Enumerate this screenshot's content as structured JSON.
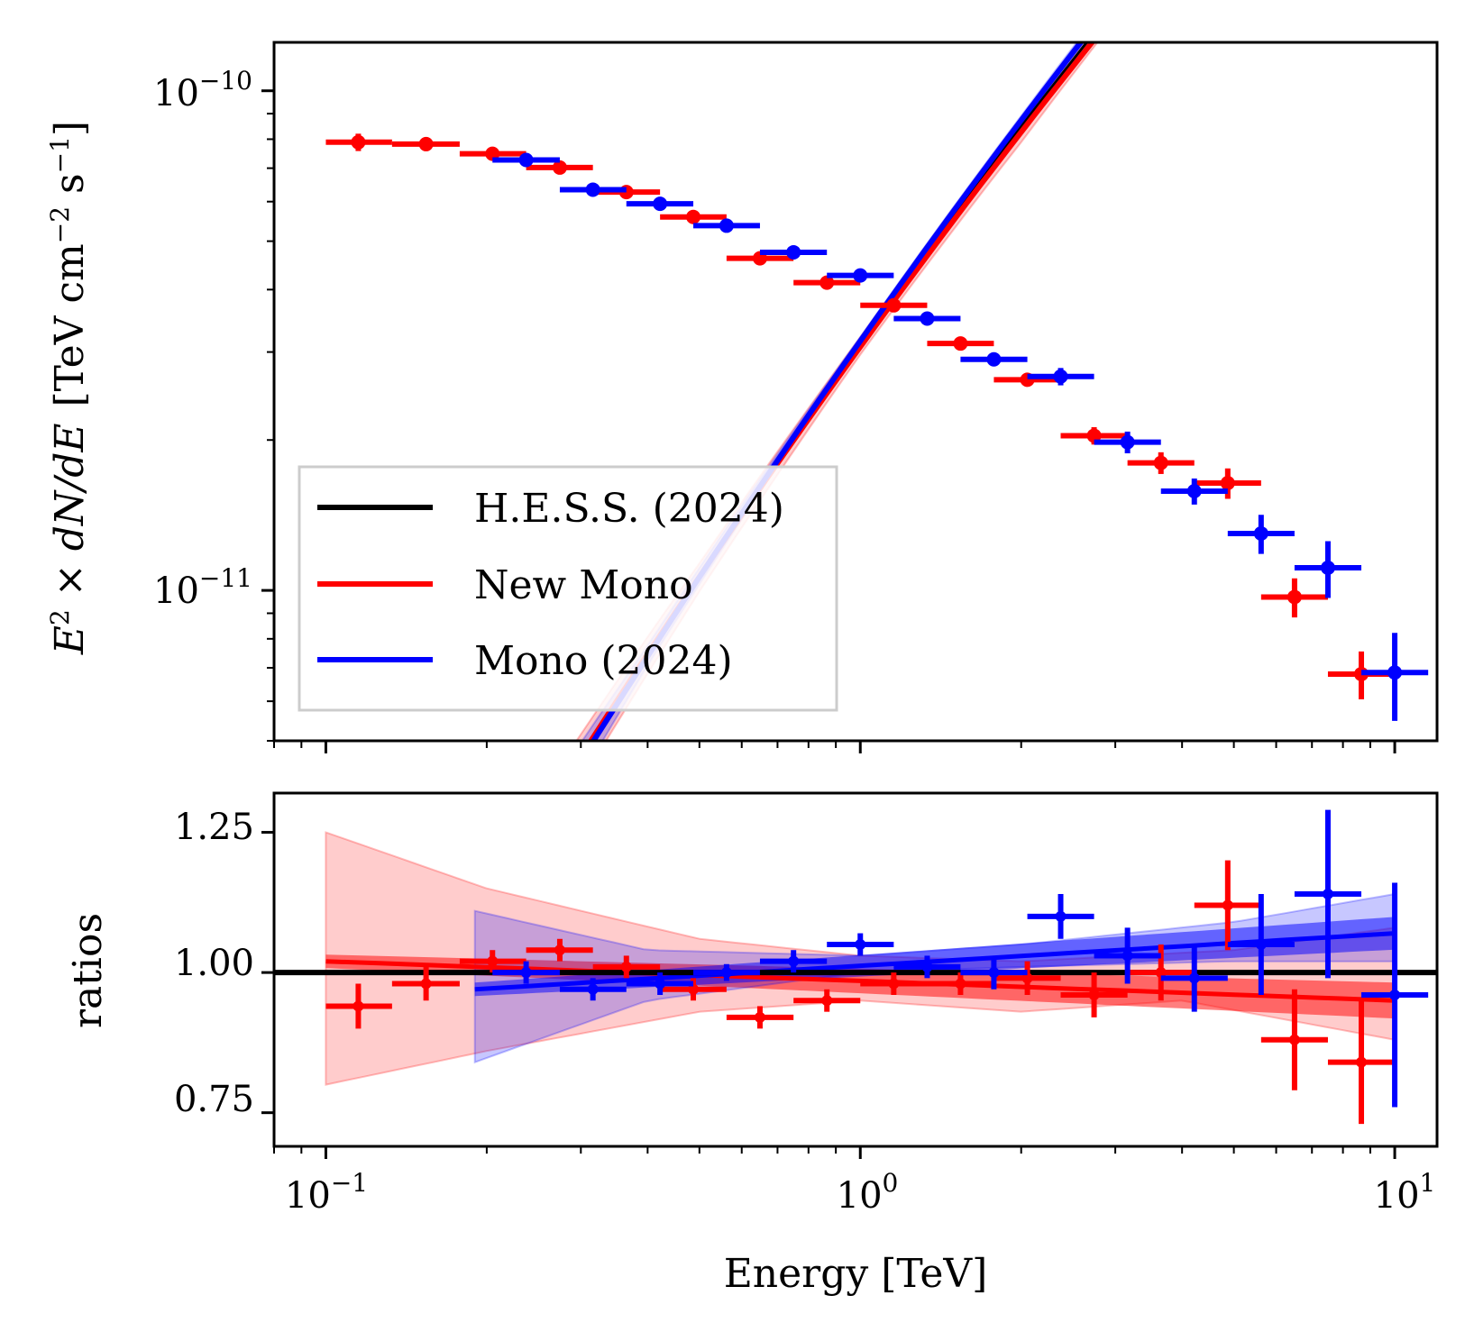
{
  "chart_data": [
    {
      "type": "line",
      "panel": "spectrum",
      "xscale": "log",
      "yscale": "log",
      "xlim": [
        0.08,
        12
      ],
      "ylim": [
        5e-12,
        1.25e-10
      ],
      "ylabel_parts": {
        "E": "E",
        "sq": "2",
        "times": " × ",
        "dNdE": "dN/dE",
        "unit_open": "[TeV cm",
        "unit_exp1": "−2",
        "unit_s": " s",
        "unit_exp2": "−1",
        "unit_close": "]"
      },
      "y_ticks": [
        {
          "value": 1e-10,
          "base": "10",
          "exp": "−10"
        },
        {
          "value": 1e-11,
          "base": "10",
          "exp": "−11"
        }
      ],
      "legend": {
        "placement": "lower-left",
        "entries": [
          {
            "label": "H.E.S.S. (2024)",
            "color": "#000000"
          },
          {
            "label": "New Mono",
            "color": "#ff0000"
          },
          {
            "label": "Mono (2024)",
            "color": "#0000ff"
          }
        ]
      },
      "series": [
        {
          "name": "H.E.S.S. (2024)",
          "color": "#000000",
          "model": "log-parabola",
          "norm": 3.12e-11,
          "e0": 1.0,
          "alpha": 0.506,
          "beta": 0.0736,
          "range": [
            0.1,
            10
          ]
        },
        {
          "name": "New Mono",
          "color": "#ff0000",
          "model": "log-parabola",
          "norm": 3.12e-11,
          "e0": 1.0,
          "alpha": 0.506,
          "beta": 0.0736,
          "ratio_start": 1.02,
          "ratio_end": 0.95,
          "band_ratio_low": [
            [
              0.1,
              0.8
            ],
            [
              0.2,
              0.86
            ],
            [
              0.5,
              0.93
            ],
            [
              1,
              0.95
            ],
            [
              2,
              0.93
            ],
            [
              4,
              0.95
            ],
            [
              10,
              0.88
            ]
          ],
          "band_ratio_high": [
            [
              0.1,
              1.25
            ],
            [
              0.2,
              1.15
            ],
            [
              0.5,
              1.06
            ],
            [
              1,
              1.03
            ],
            [
              2,
              1.02
            ],
            [
              5,
              1.04
            ],
            [
              10,
              1.08
            ]
          ],
          "range": [
            0.1,
            10
          ],
          "points": [
            {
              "e": 0.115,
              "elo": 0.1,
              "ehi": 0.133,
              "flux": 7.89e-11,
              "err": 0.04
            },
            {
              "e": 0.154,
              "elo": 0.133,
              "ehi": 0.178,
              "flux": 7.82e-11,
              "err": 0.03
            },
            {
              "e": 0.205,
              "elo": 0.178,
              "ehi": 0.237,
              "flux": 7.48e-11,
              "err": 0.02
            },
            {
              "e": 0.274,
              "elo": 0.237,
              "ehi": 0.316,
              "flux": 7.02e-11,
              "err": 0.02
            },
            {
              "e": 0.365,
              "elo": 0.316,
              "ehi": 0.422,
              "flux": 6.27e-11,
              "err": 0.02
            },
            {
              "e": 0.487,
              "elo": 0.422,
              "ehi": 0.562,
              "flux": 5.59e-11,
              "err": 0.02
            },
            {
              "e": 0.649,
              "elo": 0.562,
              "ehi": 0.75,
              "flux": 4.62e-11,
              "err": 0.02
            },
            {
              "e": 0.866,
              "elo": 0.75,
              "ehi": 1.0,
              "flux": 4.13e-11,
              "err": 0.02
            },
            {
              "e": 1.155,
              "elo": 1.0,
              "ehi": 1.334,
              "flux": 3.72e-11,
              "err": 0.02
            },
            {
              "e": 1.54,
              "elo": 1.334,
              "ehi": 1.778,
              "flux": 3.12e-11,
              "err": 0.02
            },
            {
              "e": 2.054,
              "elo": 1.778,
              "ehi": 2.371,
              "flux": 2.64e-11,
              "err": 0.03
            },
            {
              "e": 2.738,
              "elo": 2.371,
              "ehi": 3.162,
              "flux": 2.04e-11,
              "err": 0.04
            },
            {
              "e": 3.652,
              "elo": 3.162,
              "ehi": 4.217,
              "flux": 1.8e-11,
              "err": 0.05
            },
            {
              "e": 4.87,
              "elo": 4.217,
              "ehi": 5.623,
              "flux": 1.64e-11,
              "err": 0.07
            },
            {
              "e": 6.494,
              "elo": 5.623,
              "ehi": 7.499,
              "flux": 9.7e-12,
              "err": 0.09
            },
            {
              "e": 8.66,
              "elo": 7.499,
              "ehi": 10.0,
              "flux": 6.8e-12,
              "err": 0.11
            }
          ]
        },
        {
          "name": "Mono (2024)",
          "color": "#0000ff",
          "model": "log-parabola",
          "norm": 3.12e-11,
          "e0": 1.0,
          "alpha": 0.506,
          "beta": 0.0736,
          "ratio_start": 0.97,
          "ratio_end": 1.07,
          "band_ratio_low": [
            [
              0.19,
              0.84
            ],
            [
              0.4,
              0.95
            ],
            [
              1,
              1.0
            ],
            [
              2,
              1.01
            ],
            [
              5,
              1.02
            ],
            [
              10,
              1.02
            ]
          ],
          "band_ratio_high": [
            [
              0.19,
              1.11
            ],
            [
              0.4,
              1.04
            ],
            [
              1,
              1.03
            ],
            [
              2,
              1.05
            ],
            [
              5,
              1.09
            ],
            [
              10,
              1.14
            ]
          ],
          "range": [
            0.19,
            10
          ],
          "points": [
            {
              "e": 0.237,
              "elo": 0.205,
              "ehi": 0.274,
              "flux": 7.27e-11,
              "err": 0.02
            },
            {
              "e": 0.316,
              "elo": 0.274,
              "ehi": 0.365,
              "flux": 6.34e-11,
              "err": 0.02
            },
            {
              "e": 0.422,
              "elo": 0.365,
              "ehi": 0.487,
              "flux": 5.94e-11,
              "err": 0.02
            },
            {
              "e": 0.562,
              "elo": 0.487,
              "ehi": 0.649,
              "flux": 5.37e-11,
              "err": 0.015
            },
            {
              "e": 0.75,
              "elo": 0.649,
              "ehi": 0.866,
              "flux": 4.75e-11,
              "err": 0.02
            },
            {
              "e": 1.0,
              "elo": 0.866,
              "ehi": 1.155,
              "flux": 4.27e-11,
              "err": 0.02
            },
            {
              "e": 1.334,
              "elo": 1.155,
              "ehi": 1.54,
              "flux": 3.5e-11,
              "err": 0.02
            },
            {
              "e": 1.778,
              "elo": 1.54,
              "ehi": 2.054,
              "flux": 2.9e-11,
              "err": 0.03
            },
            {
              "e": 2.371,
              "elo": 2.054,
              "ehi": 2.738,
              "flux": 2.68e-11,
              "err": 0.04
            },
            {
              "e": 3.162,
              "elo": 2.738,
              "ehi": 3.652,
              "flux": 1.98e-11,
              "err": 0.05
            },
            {
              "e": 4.217,
              "elo": 3.652,
              "ehi": 4.87,
              "flux": 1.58e-11,
              "err": 0.06
            },
            {
              "e": 5.623,
              "elo": 4.87,
              "ehi": 6.494,
              "flux": 1.3e-11,
              "err": 0.09
            },
            {
              "e": 7.499,
              "elo": 6.494,
              "ehi": 8.66,
              "flux": 1.11e-11,
              "err": 0.13
            },
            {
              "e": 10.0,
              "elo": 8.66,
              "ehi": 11.55,
              "flux": 6.85e-12,
              "err": 0.2
            }
          ]
        }
      ]
    },
    {
      "type": "line",
      "panel": "ratios",
      "xscale": "log",
      "xlim": [
        0.08,
        12
      ],
      "ylim": [
        0.69,
        1.32
      ],
      "ylabel": "ratios",
      "xlabel": "Energy [TeV]",
      "y_ticks": [
        "0.75",
        "1.00",
        "1.25"
      ],
      "x_ticks": [
        {
          "value": 0.1,
          "base": "10",
          "exp": "−1"
        },
        {
          "value": 1,
          "base": "10",
          "exp": "0"
        },
        {
          "value": 10,
          "base": "10",
          "exp": "1"
        }
      ],
      "reference_line": {
        "value": 1.0,
        "color": "#000000"
      },
      "series": [
        {
          "name": "New Mono",
          "color": "#ff0000",
          "points": [
            {
              "e": 0.115,
              "elo": 0.1,
              "ehi": 0.133,
              "ratio": 0.94,
              "err": 0.04
            },
            {
              "e": 0.154,
              "elo": 0.133,
              "ehi": 0.178,
              "ratio": 0.98,
              "err": 0.03
            },
            {
              "e": 0.205,
              "elo": 0.178,
              "ehi": 0.237,
              "ratio": 1.02,
              "err": 0.02
            },
            {
              "e": 0.274,
              "elo": 0.237,
              "ehi": 0.316,
              "ratio": 1.04,
              "err": 0.02
            },
            {
              "e": 0.365,
              "elo": 0.316,
              "ehi": 0.422,
              "ratio": 1.01,
              "err": 0.02
            },
            {
              "e": 0.487,
              "elo": 0.422,
              "ehi": 0.562,
              "ratio": 0.97,
              "err": 0.02
            },
            {
              "e": 0.649,
              "elo": 0.562,
              "ehi": 0.75,
              "ratio": 0.92,
              "err": 0.02
            },
            {
              "e": 0.866,
              "elo": 0.75,
              "ehi": 1.0,
              "ratio": 0.95,
              "err": 0.02
            },
            {
              "e": 1.155,
              "elo": 1.0,
              "ehi": 1.334,
              "ratio": 0.98,
              "err": 0.02
            },
            {
              "e": 1.54,
              "elo": 1.334,
              "ehi": 1.778,
              "ratio": 0.98,
              "err": 0.02
            },
            {
              "e": 2.054,
              "elo": 1.778,
              "ehi": 2.371,
              "ratio": 0.99,
              "err": 0.03
            },
            {
              "e": 2.738,
              "elo": 2.371,
              "ehi": 3.162,
              "ratio": 0.96,
              "err": 0.04
            },
            {
              "e": 3.652,
              "elo": 3.162,
              "ehi": 4.217,
              "ratio": 1.0,
              "err": 0.05
            },
            {
              "e": 4.87,
              "elo": 4.217,
              "ehi": 5.623,
              "ratio": 1.12,
              "err": 0.08
            },
            {
              "e": 6.494,
              "elo": 5.623,
              "ehi": 7.499,
              "ratio": 0.88,
              "err": 0.09
            },
            {
              "e": 8.66,
              "elo": 7.499,
              "ehi": 10.0,
              "ratio": 0.84,
              "err": 0.11
            }
          ]
        },
        {
          "name": "Mono (2024)",
          "color": "#0000ff",
          "points": [
            {
              "e": 0.237,
              "elo": 0.205,
              "ehi": 0.274,
              "ratio": 1.0,
              "err": 0.02
            },
            {
              "e": 0.316,
              "elo": 0.274,
              "ehi": 0.365,
              "ratio": 0.97,
              "err": 0.02
            },
            {
              "e": 0.422,
              "elo": 0.365,
              "ehi": 0.487,
              "ratio": 0.98,
              "err": 0.02
            },
            {
              "e": 0.562,
              "elo": 0.487,
              "ehi": 0.649,
              "ratio": 1.0,
              "err": 0.015
            },
            {
              "e": 0.75,
              "elo": 0.649,
              "ehi": 0.866,
              "ratio": 1.02,
              "err": 0.02
            },
            {
              "e": 1.0,
              "elo": 0.866,
              "ehi": 1.155,
              "ratio": 1.05,
              "err": 0.02
            },
            {
              "e": 1.334,
              "elo": 1.155,
              "ehi": 1.54,
              "ratio": 1.01,
              "err": 0.02
            },
            {
              "e": 1.778,
              "elo": 1.54,
              "ehi": 2.054,
              "ratio": 1.0,
              "err": 0.03
            },
            {
              "e": 2.371,
              "elo": 2.054,
              "ehi": 2.738,
              "ratio": 1.1,
              "err": 0.04
            },
            {
              "e": 3.162,
              "elo": 2.738,
              "ehi": 3.652,
              "ratio": 1.03,
              "err": 0.05
            },
            {
              "e": 4.217,
              "elo": 3.652,
              "ehi": 4.87,
              "ratio": 0.99,
              "err": 0.06
            },
            {
              "e": 5.623,
              "elo": 4.87,
              "ehi": 6.494,
              "ratio": 1.05,
              "err": 0.09
            },
            {
              "e": 7.499,
              "elo": 6.494,
              "ehi": 8.66,
              "ratio": 1.14,
              "err": 0.15
            },
            {
              "e": 10.0,
              "elo": 8.66,
              "ehi": 11.55,
              "ratio": 0.96,
              "err": 0.2
            }
          ]
        }
      ]
    }
  ]
}
